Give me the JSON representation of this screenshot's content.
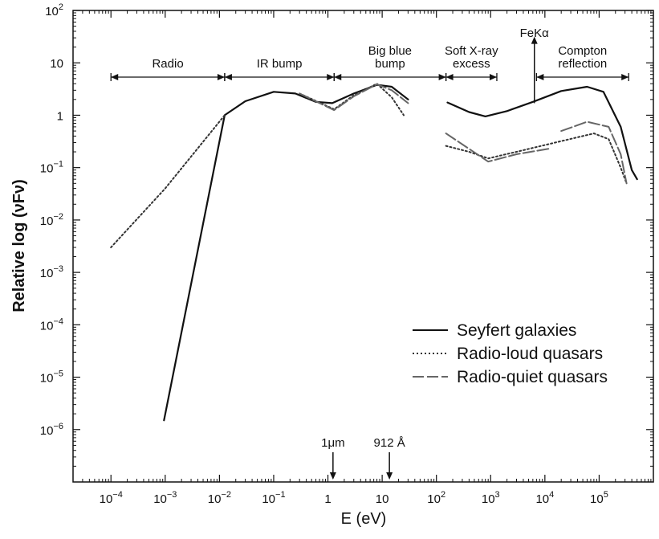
{
  "chart_data": {
    "type": "line",
    "title": "",
    "xlabel": "E (eV)",
    "ylabel": "Relative log (νFν)",
    "x_scale": "log",
    "y_scale": "log",
    "xlim": [
      2e-05,
      1000000
    ],
    "ylim": [
      1e-07,
      100
    ],
    "grid": false,
    "legend_position": "bottom-right",
    "x_ticks": [
      {
        "value": 0.0001,
        "base": "10",
        "exp": "−4"
      },
      {
        "value": 0.001,
        "base": "10",
        "exp": "−3"
      },
      {
        "value": 0.01,
        "base": "10",
        "exp": "−2"
      },
      {
        "value": 0.1,
        "base": "10",
        "exp": "−1"
      },
      {
        "value": 1,
        "base": "1",
        "exp": ""
      },
      {
        "value": 10,
        "base": "10",
        "exp": ""
      },
      {
        "value": 100,
        "base": "10",
        "exp": "2"
      },
      {
        "value": 1000,
        "base": "10",
        "exp": "3"
      },
      {
        "value": 10000,
        "base": "10",
        "exp": "4"
      },
      {
        "value": 100000,
        "base": "10",
        "exp": "5"
      }
    ],
    "y_ticks": [
      {
        "value": 100,
        "base": "10",
        "exp": "2"
      },
      {
        "value": 10,
        "base": "10",
        "exp": ""
      },
      {
        "value": 1,
        "base": "1",
        "exp": ""
      },
      {
        "value": 0.1,
        "base": "10",
        "exp": "−1"
      },
      {
        "value": 0.01,
        "base": "10",
        "exp": "−2"
      },
      {
        "value": 0.001,
        "base": "10",
        "exp": "−3"
      },
      {
        "value": 0.0001,
        "base": "10",
        "exp": "−4"
      },
      {
        "value": 1e-05,
        "base": "10",
        "exp": "−5"
      },
      {
        "value": 1e-06,
        "base": "10",
        "exp": "−6"
      }
    ],
    "series": [
      {
        "name": "Seyfert galaxies",
        "style": "solid",
        "color": "#111111",
        "segments": [
          [
            [
              0.00095,
              1.5e-06
            ],
            [
              0.0125,
              1.0
            ],
            [
              0.03,
              1.85
            ],
            [
              0.1,
              2.8
            ],
            [
              0.25,
              2.6
            ],
            [
              0.6,
              1.8
            ],
            [
              1.2,
              1.7
            ],
            [
              3,
              2.6
            ],
            [
              8,
              3.8
            ],
            [
              15,
              3.5
            ],
            [
              30,
              2.0
            ]
          ],
          [
            [
              160,
              1.75
            ],
            [
              400,
              1.15
            ],
            [
              800,
              0.95
            ],
            [
              2000,
              1.2
            ],
            [
              6000,
              1.8
            ],
            [
              20000,
              2.9
            ],
            [
              60000,
              3.5
            ],
            [
              120000,
              2.8
            ],
            [
              250000,
              0.6
            ],
            [
              400000,
              0.09
            ],
            [
              500000,
              0.06
            ]
          ]
        ]
      },
      {
        "name": "Radio-loud quasars",
        "style": "dotted",
        "color": "#333333",
        "segments": [
          [
            [
              0.0001,
              0.003
            ],
            [
              0.001,
              0.04
            ],
            [
              0.0125,
              1.0
            ]
          ],
          [
            [
              0.3,
              2.6
            ],
            [
              1.3,
              1.3
            ],
            [
              3,
              2.4
            ],
            [
              8,
              4.0
            ],
            [
              15,
              2.2
            ],
            [
              25,
              1.0
            ]
          ],
          [
            [
              150,
              0.26
            ],
            [
              400,
              0.2
            ],
            [
              900,
              0.15
            ],
            [
              3000,
              0.2
            ],
            [
              20000,
              0.32
            ],
            [
              80000,
              0.45
            ],
            [
              150000,
              0.35
            ],
            [
              250000,
              0.1
            ],
            [
              320000,
              0.05
            ]
          ]
        ]
      },
      {
        "name": "Radio-quiet quasars",
        "style": "long-dash",
        "color": "#666666",
        "segments": [
          [
            [
              0.3,
              2.6
            ],
            [
              1.3,
              1.25
            ],
            [
              3,
              2.3
            ],
            [
              8,
              3.9
            ],
            [
              15,
              3.0
            ],
            [
              30,
              1.7
            ]
          ],
          [
            [
              150,
              0.45
            ],
            [
              900,
              0.13
            ],
            [
              3000,
              0.18
            ],
            [
              12000,
              0.23
            ]
          ],
          [
            [
              20000,
              0.5
            ],
            [
              60000,
              0.75
            ],
            [
              150000,
              0.6
            ],
            [
              250000,
              0.18
            ],
            [
              320000,
              0.05
            ]
          ]
        ]
      }
    ],
    "bands": [
      {
        "lines": [
          "Radio"
        ],
        "from": 0.0001,
        "to": 0.0125
      },
      {
        "lines": [
          "IR bump"
        ],
        "from": 0.0125,
        "to": 1.3
      },
      {
        "lines": [
          "Big blue",
          "bump"
        ],
        "from": 1.3,
        "to": 150
      },
      {
        "lines": [
          "Soft X-ray",
          "excess"
        ],
        "from": 150,
        "to": 1300
      },
      {
        "lines": [
          "Compton",
          "reflection"
        ],
        "from": 7000,
        "to": 350000
      }
    ],
    "annotations": {
      "fe_line": {
        "label": "FeKα",
        "x": 6400,
        "y_base": 1.7,
        "y_top": 3.3
      },
      "markers": [
        {
          "label": "1μm",
          "x": 1.24
        },
        {
          "label": "912 Å",
          "x": 13.6
        }
      ]
    }
  }
}
